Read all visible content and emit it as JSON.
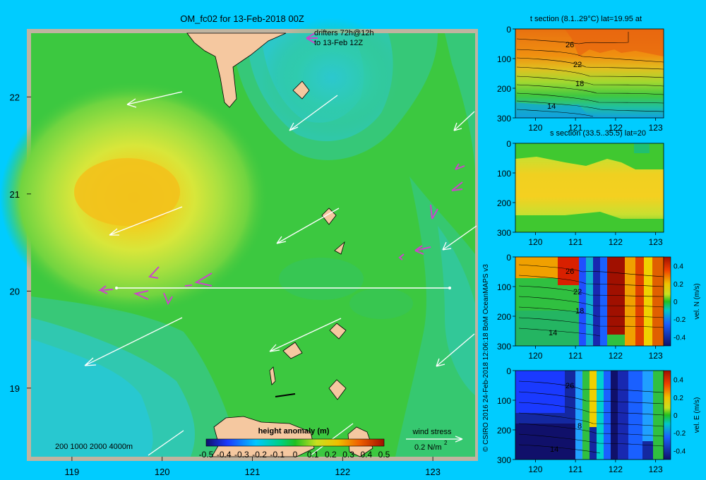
{
  "colors": {
    "background": "#00ccff",
    "frame": "#c0b4a0",
    "land": "#f5c8a0",
    "wind_arrow": "#ffffff",
    "drifter": "#cc44cc",
    "section_line": "#ffffff"
  },
  "chart_data": [
    {
      "type": "heatmap",
      "title": "OM_fc02 for 13-Feb-2018 00Z",
      "xticks": [
        "119",
        "120",
        "121",
        "122",
        "123"
      ],
      "yticks": [
        "22",
        "21",
        "20",
        "19"
      ],
      "xlim": [
        118.5,
        123.5
      ],
      "ylim": [
        18.25,
        22.7
      ],
      "section_lat": 20,
      "section_lon_range": [
        119.5,
        123.05
      ],
      "drifter_legend": [
        "drifters 72h@12h",
        "to 13-Feb 12Z"
      ],
      "depth_legend": "200  1000  2000  4000m",
      "colorbar_title": "height anomaly (m)",
      "colorbar_ticks": [
        "-0.5",
        "-0.4",
        "-0.3",
        "-0.2",
        "-0.1",
        "0",
        "0.1",
        "0.2",
        "0.3",
        "0.4",
        "0.5"
      ],
      "wind_legend": [
        "wind stress",
        "0.2 N/m",
        "2"
      ],
      "anomaly_centers": [
        {
          "lon": 119.6,
          "lat": 21.0,
          "value": 0.33
        },
        {
          "lon": 121.7,
          "lat": 21.6,
          "value": -0.12
        },
        {
          "lon": 119.4,
          "lat": 19.3,
          "value": -0.15
        }
      ],
      "credit": "© CSIRO 2016   24-Feb-2018 12:06:18 BoM OceanMAPS v3"
    },
    {
      "type": "heatmap",
      "title": "t section (8.1..29°C) lat=19.95 at",
      "xticks": [
        "120",
        "121",
        "122",
        "123"
      ],
      "yticks": [
        "0",
        "100",
        "200",
        "300"
      ],
      "contour_labels": [
        "26",
        "22",
        "18",
        "14"
      ]
    },
    {
      "type": "heatmap",
      "title": "s section (33.5..35.5) lat=20",
      "xticks": [
        "120",
        "121",
        "122",
        "123"
      ],
      "yticks": [
        "0",
        "100",
        "200",
        "300"
      ]
    },
    {
      "type": "heatmap",
      "title": "",
      "xticks": [
        "120",
        "121",
        "122",
        "123"
      ],
      "yticks": [
        "0",
        "100",
        "200",
        "300"
      ],
      "contour_labels": [
        "26",
        "22",
        "18",
        "14"
      ],
      "colorbar_label": "vel. N (m/s)",
      "colorbar_ticks": [
        "0.4",
        "0.2",
        "0",
        "-0.2",
        "-0.4"
      ]
    },
    {
      "type": "heatmap",
      "title": "",
      "xticks": [
        "120",
        "121",
        "122",
        "123"
      ],
      "yticks": [
        "0",
        "100",
        "200",
        "300"
      ],
      "contour_labels": [
        "26",
        "8",
        "14"
      ],
      "colorbar_label": "vel. E (m/s)",
      "colorbar_ticks": [
        "0.4",
        "0.2",
        "0",
        "-0.2",
        "-0.4"
      ]
    }
  ]
}
